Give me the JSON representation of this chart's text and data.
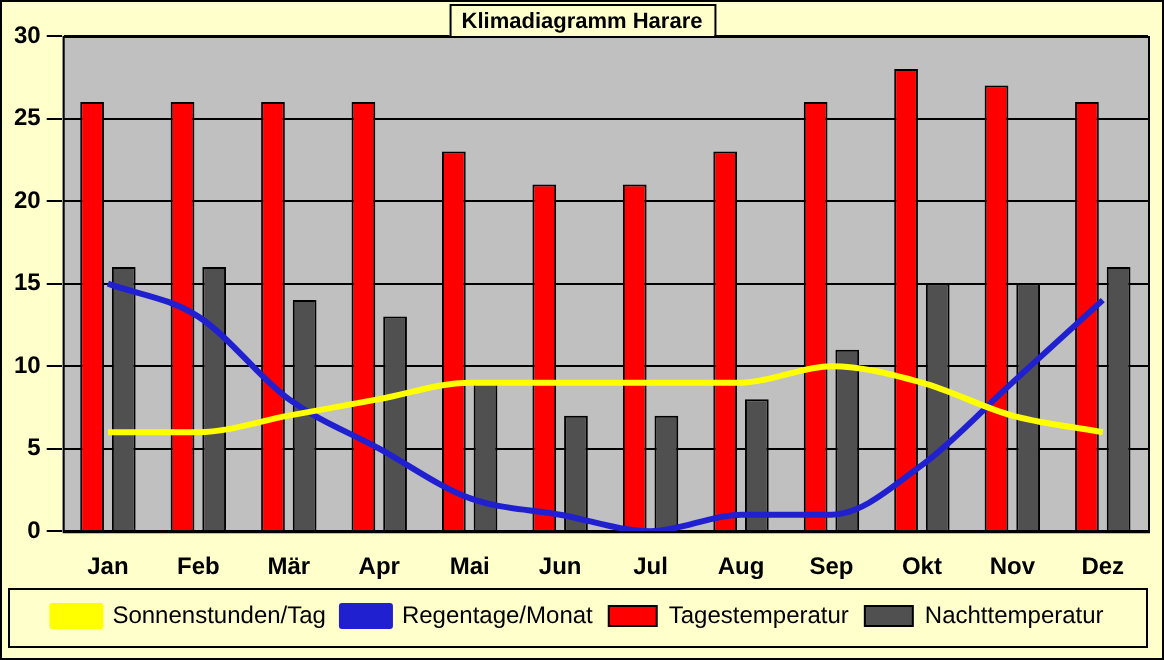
{
  "chart_data": {
    "type": "bar",
    "title": "Klimadiagramm Harare",
    "categories": [
      "Jan",
      "Feb",
      "Mär",
      "Apr",
      "Mai",
      "Jun",
      "Jul",
      "Aug",
      "Sep",
      "Okt",
      "Nov",
      "Dez"
    ],
    "series": [
      {
        "name": "Tagestemperatur",
        "color": "#ff0000",
        "values": [
          26,
          26,
          26,
          26,
          23,
          21,
          21,
          23,
          26,
          28,
          27,
          26
        ]
      },
      {
        "name": "Nachttemperatur",
        "color": "#505050",
        "values": [
          16,
          16,
          14,
          13,
          9,
          7,
          7,
          8,
          11,
          15,
          15,
          16
        ]
      },
      {
        "name": "Sonnenstunden/Tag",
        "type": "line",
        "color": "#ffff00",
        "values": [
          6,
          6,
          7,
          8,
          9,
          9,
          9,
          9,
          10,
          9,
          7,
          6
        ]
      },
      {
        "name": "Regentage/Monat",
        "type": "line",
        "color": "#2020d0",
        "values": [
          15,
          13,
          8,
          5,
          2,
          1,
          0,
          1,
          1,
          4,
          9,
          14
        ]
      }
    ],
    "ylim": [
      0,
      30
    ],
    "yticks": [
      0,
      5,
      10,
      15,
      20,
      25,
      30
    ],
    "grid": "y",
    "legend": "bottom",
    "marker": "none"
  }
}
